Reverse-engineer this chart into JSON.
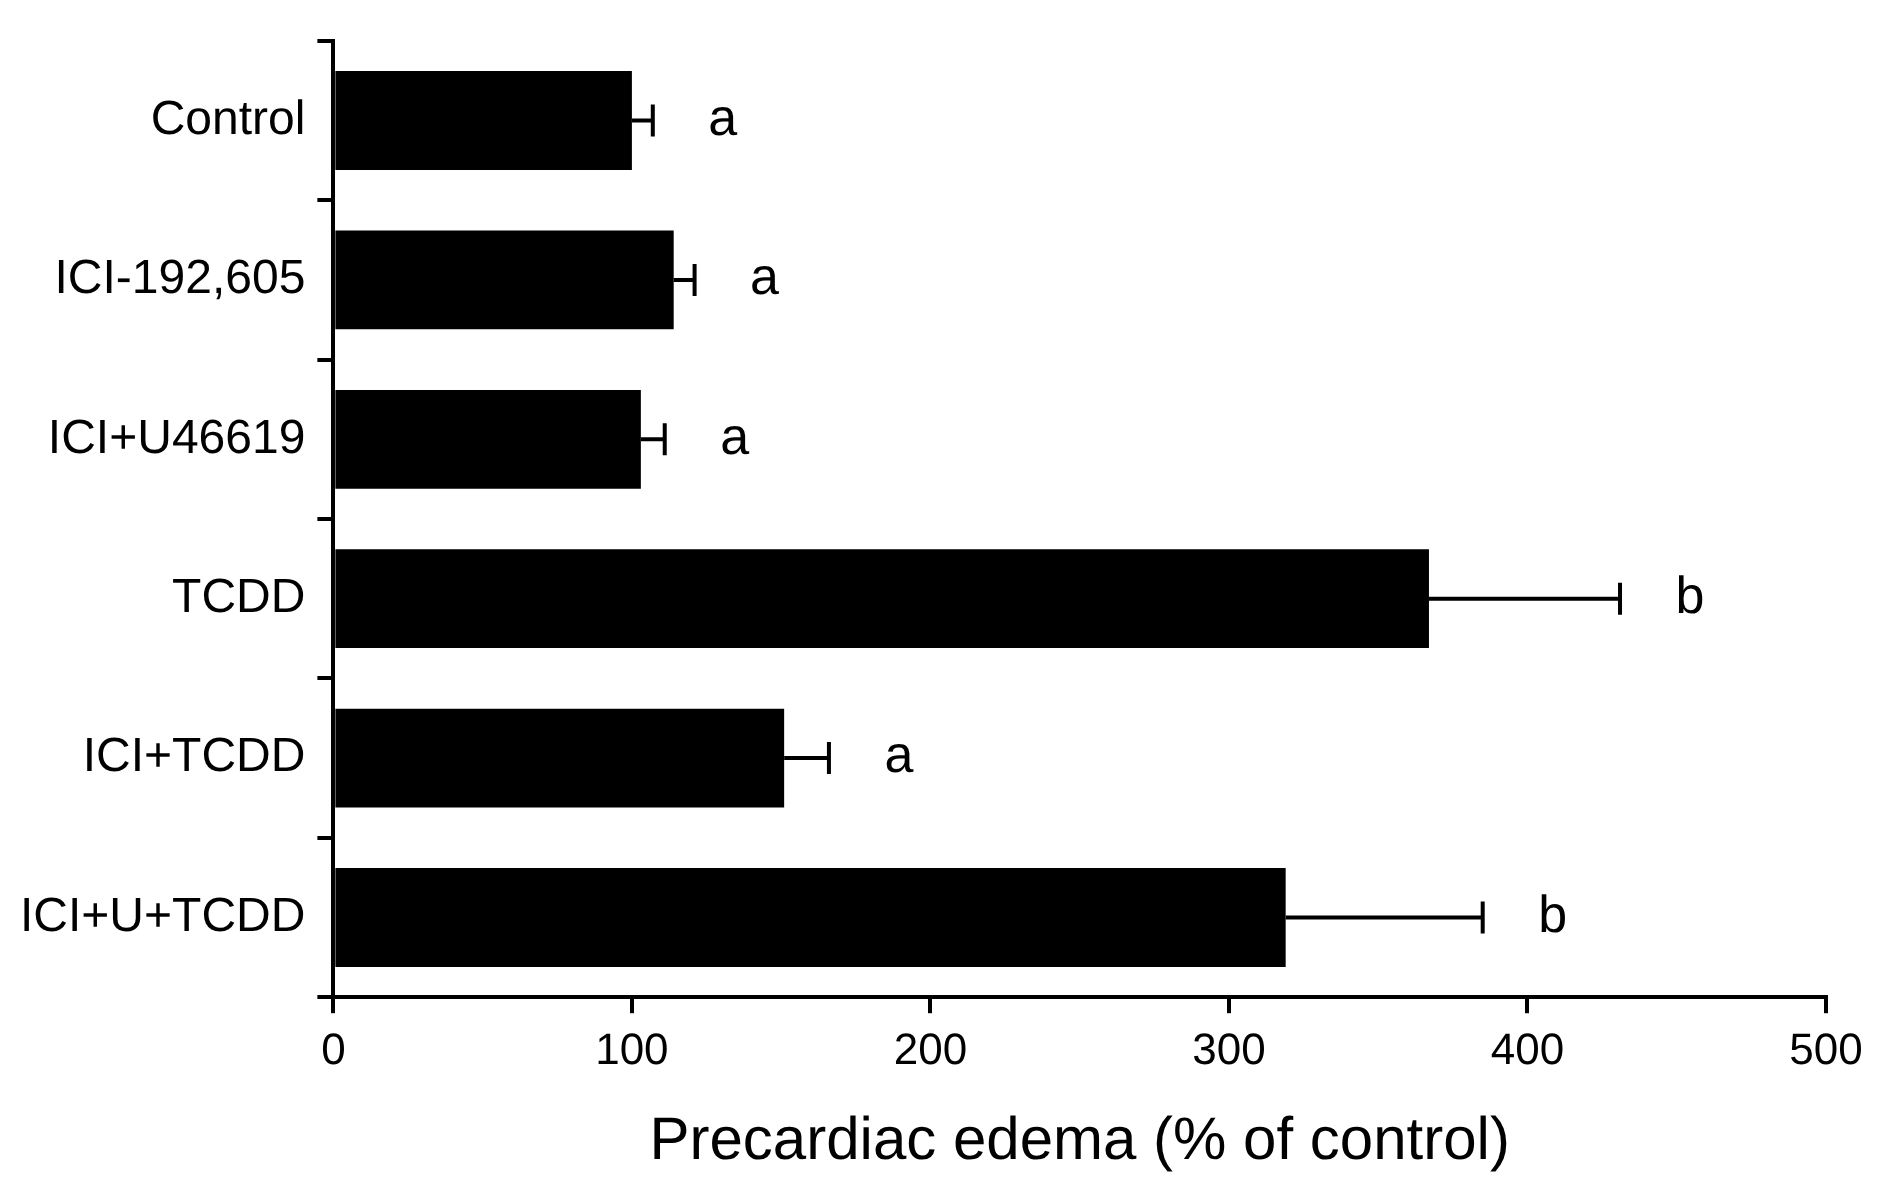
{
  "chart_data": {
    "type": "bar",
    "orientation": "horizontal",
    "xlabel": "Precardiac edema (% of control)",
    "categories": [
      "Control",
      "ICI-192,605",
      "ICI+U46619",
      "TCDD",
      "ICI+TCDD",
      "ICI+U+TCDD"
    ],
    "values": [
      100,
      114,
      103,
      367,
      151,
      319
    ],
    "errors": [
      7,
      7,
      8,
      64,
      15,
      66
    ],
    "color": "#000000",
    "xlim": [
      0,
      500
    ],
    "xticks": [
      0,
      100,
      200,
      300,
      400,
      500
    ],
    "grid": false,
    "legend": false,
    "annotations": [
      "a",
      "a",
      "a",
      "b",
      "a",
      "b"
    ]
  }
}
